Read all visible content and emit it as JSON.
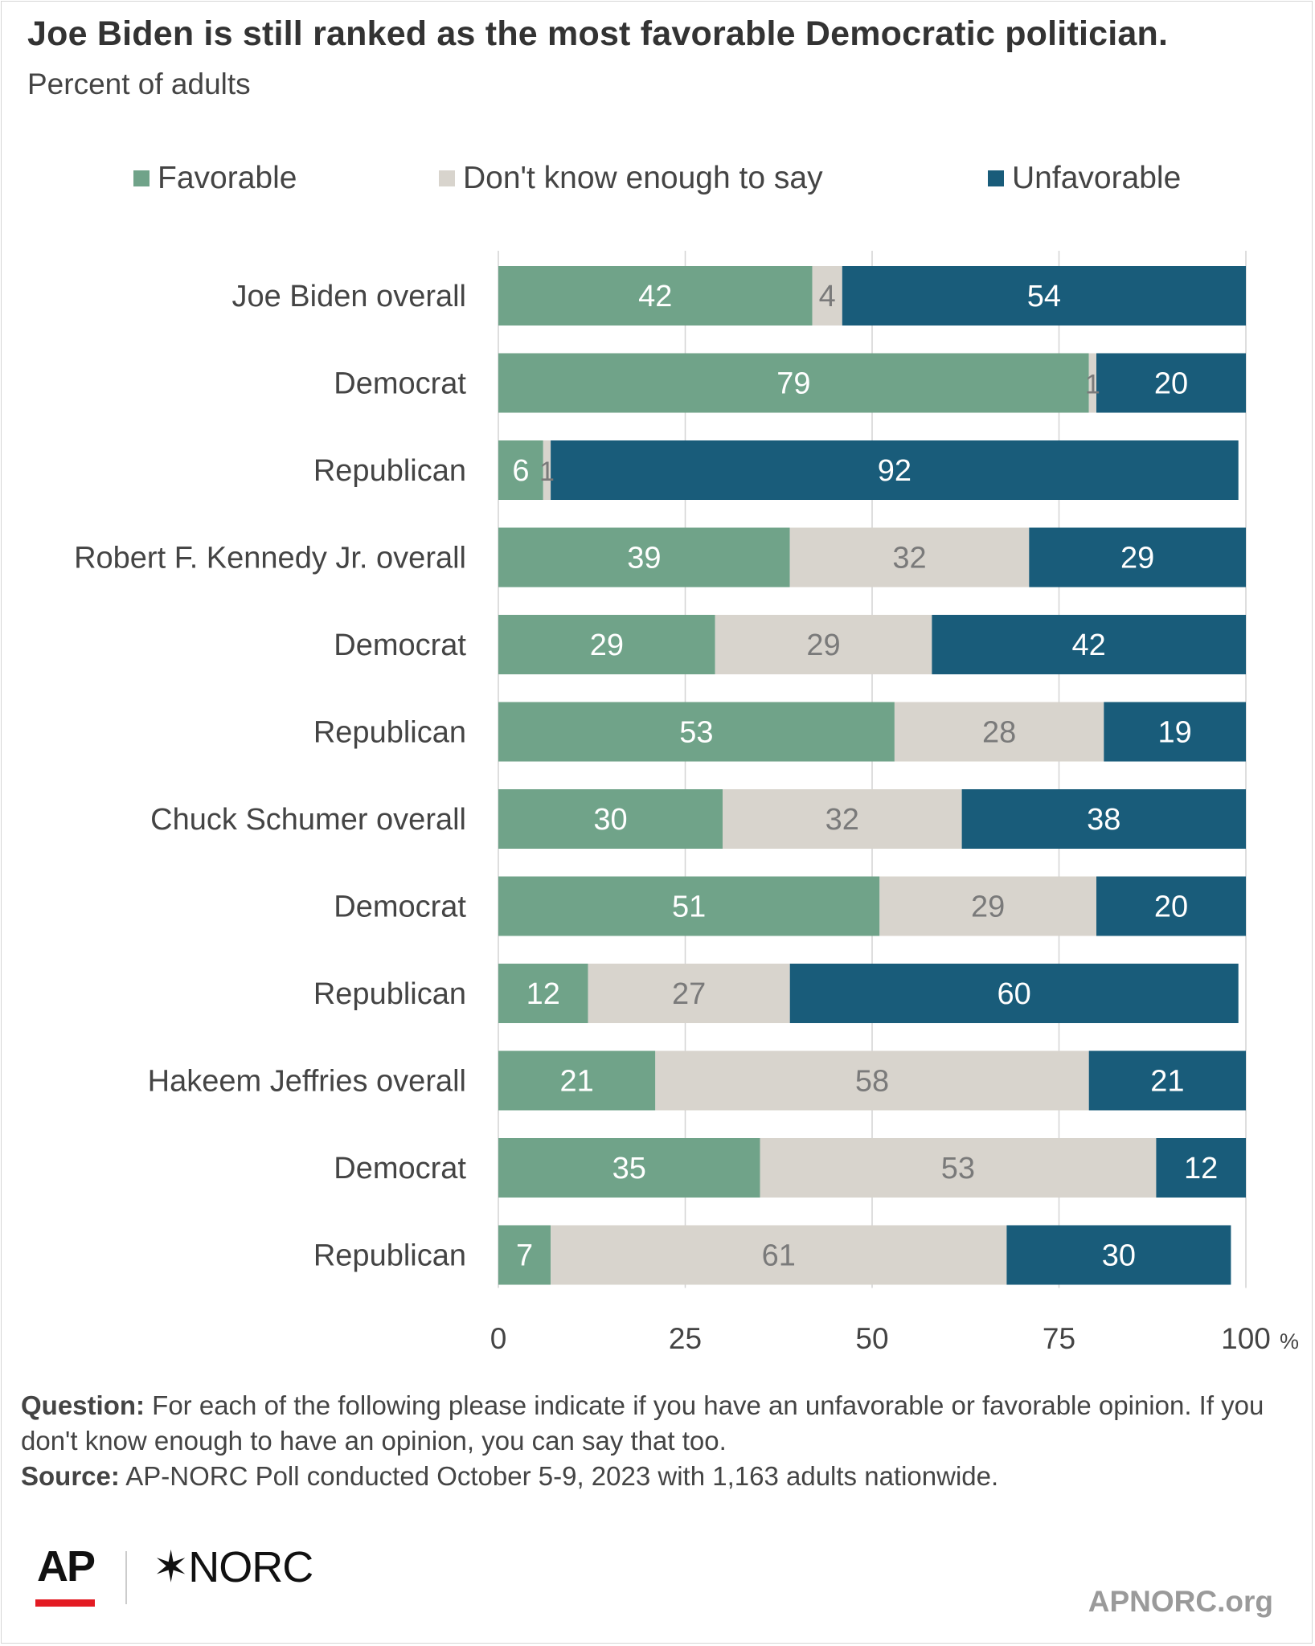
{
  "colors": {
    "favorable": "#70a389",
    "dont_know": "#d8d4cd",
    "unfavorable": "#195c7a",
    "label_on_green": "#ffffff",
    "label_on_grey": "#7a7a7a",
    "label_on_blue": "#ffffff",
    "grid": "#d4d4d4"
  },
  "chart_data": {
    "type": "bar",
    "orientation": "horizontal",
    "stacked": true,
    "title": "Joe Biden is still ranked as the most favorable Democratic politician.",
    "subtitle": "Percent of adults",
    "categories": [
      "Joe Biden overall",
      "Democrat",
      "Republican",
      "Robert F. Kennedy Jr.  overall",
      "Democrat",
      "Republican",
      "Chuck Schumer overall",
      "Democrat",
      "Republican",
      "Hakeem Jeffries overall",
      "Democrat",
      "Republican"
    ],
    "series": [
      {
        "name": "Favorable",
        "values": [
          42,
          79,
          6,
          39,
          29,
          53,
          30,
          51,
          12,
          21,
          35,
          7
        ]
      },
      {
        "name": "Don't know enough to say",
        "values": [
          4,
          1,
          1,
          32,
          29,
          28,
          32,
          29,
          27,
          58,
          53,
          61
        ]
      },
      {
        "name": "Unfavorable",
        "values": [
          54,
          20,
          92,
          29,
          42,
          19,
          38,
          20,
          60,
          21,
          12,
          30
        ]
      }
    ],
    "xlim": [
      0,
      100
    ],
    "xticks": [
      "0",
      "25",
      "50",
      "75",
      "100"
    ],
    "x_unit": "%",
    "grid": true,
    "legend_position": "top"
  },
  "notes": {
    "question_label": "Question:",
    "question_text": " For each of the following please indicate if you have an unfavorable or favorable opinion. If you don't know enough to have an opinion, you can say that too.",
    "source_label": "Source:",
    "source_text": " AP-NORC Poll conducted October 5-9, 2023 with 1,163 adults nationwide."
  },
  "branding": {
    "ap_logo": "AP",
    "norc_logo": "✶NORC",
    "site": "APNORC.org"
  }
}
